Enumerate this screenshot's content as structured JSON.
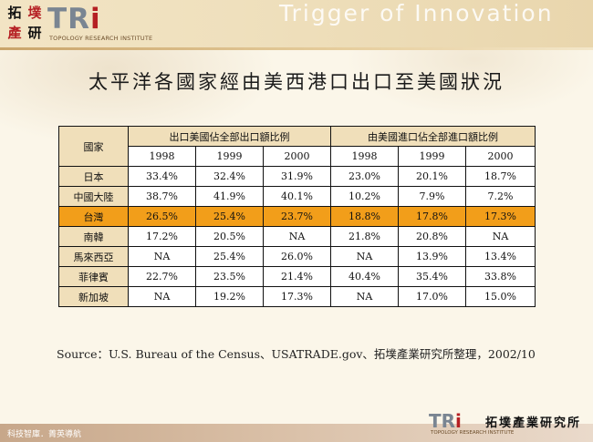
{
  "header": {
    "logo_chars": [
      "拓",
      "墣",
      "產",
      "研"
    ],
    "logo_text_prefix": "TR",
    "logo_text_i": "i",
    "logo_subtitle": "TOPOLOGY RESEARCH INSTITUTE",
    "tagline": "Trigger of Innovation"
  },
  "title": "太平洋各國家經由美西港口出口至美國狀況",
  "table": {
    "country_header": "國家",
    "group_headers": [
      "出口美國佔全部出口額比例",
      "由美國進口佔全部進口額比例"
    ],
    "years": [
      "1998",
      "1999",
      "2000",
      "1998",
      "1999",
      "2000"
    ],
    "rows": [
      {
        "country": "日本",
        "values": [
          "33.4%",
          "32.4%",
          "31.9%",
          "23.0%",
          "20.1%",
          "18.7%"
        ]
      },
      {
        "country": "中國大陸",
        "values": [
          "38.7%",
          "41.9%",
          "40.1%",
          "10.2%",
          "7.9%",
          "7.2%"
        ]
      },
      {
        "country": "台灣",
        "values": [
          "26.5%",
          "25.4%",
          "23.7%",
          "18.8%",
          "17.8%",
          "17.3%"
        ]
      },
      {
        "country": "南韓",
        "values": [
          "17.2%",
          "20.5%",
          "NA",
          "21.8%",
          "20.8%",
          "NA"
        ]
      },
      {
        "country": "馬來西亞",
        "values": [
          "NA",
          "25.4%",
          "26.0%",
          "NA",
          "13.9%",
          "13.4%"
        ]
      },
      {
        "country": "菲律賓",
        "values": [
          "22.7%",
          "23.5%",
          "21.4%",
          "40.4%",
          "35.4%",
          "33.8%"
        ]
      },
      {
        "country": "新加坡",
        "values": [
          "NA",
          "19.2%",
          "17.3%",
          "NA",
          "17.0%",
          "15.0%"
        ]
      }
    ],
    "highlight_color": "#f29e1a",
    "header_color": "#f0dfba"
  },
  "source": "Source：U.S. Bureau of the Census、USATRADE.gov、拓墣產業研究所整理，2002/10",
  "footer": {
    "slogan": "科技智庫．菁英導航",
    "logo_text_prefix": "TR",
    "logo_text_i": "i",
    "logo_cn": "拓墣產業研究所",
    "logo_subtitle": "TOPOLOGY RESEARCH INSTITUTE"
  }
}
